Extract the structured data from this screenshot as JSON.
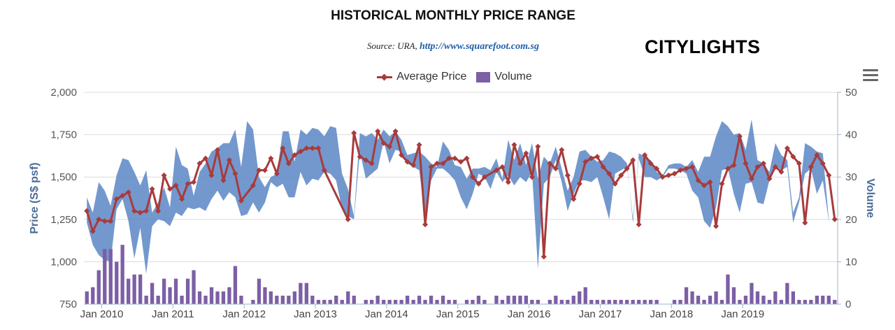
{
  "title": "HISTORICAL MONTHLY PRICE RANGE",
  "source_prefix": "Source: URA,",
  "source_link": "http://www.squarefoot.com.sg",
  "brand": "CITYLIGHTS",
  "menu_icon": "hamburger-menu-icon",
  "colors": {
    "price_line": "#a83b3b",
    "range_band": "#5b86c5",
    "volume_bar": "#7c5fa5",
    "axis_title": "#4a6b97"
  },
  "chart_data": {
    "type": "line",
    "legend": [
      "Average Price",
      "Volume"
    ],
    "legend_position": "top-center",
    "grid": true,
    "y_left": {
      "label": "Price (S$ psf)",
      "range": [
        750,
        2000
      ],
      "ticks": [
        "750",
        "1,000",
        "1,250",
        "1,500",
        "1,750",
        "2,000"
      ]
    },
    "y_right": {
      "label": "Volume",
      "range": [
        0,
        50
      ],
      "ticks": [
        "0",
        "10",
        "20",
        "30",
        "40",
        "50"
      ]
    },
    "x_ticks": [
      "Jan 2010",
      "Jan 2011",
      "Jan 2012",
      "Jan 2013",
      "Jan 2014",
      "Jan 2015",
      "Jan 2016",
      "Jan 2017",
      "Jan 2018",
      "Jan 2019"
    ],
    "x_start": "2009-10",
    "price_range": [
      [
        1380,
        1230
      ],
      [
        1290,
        1100
      ],
      [
        1470,
        1040
      ],
      [
        1420,
        1010
      ],
      [
        1330,
        1000
      ],
      [
        1510,
        1310
      ],
      [
        1610,
        1370
      ],
      [
        1600,
        1240
      ],
      [
        1530,
        1020
      ],
      [
        1450,
        1200
      ],
      [
        1540,
        930
      ],
      [
        1290,
        1210
      ],
      [
        1350,
        1250
      ],
      [
        1440,
        1240
      ],
      [
        1320,
        1210
      ],
      [
        1680,
        1290
      ],
      [
        1570,
        1270
      ],
      [
        1550,
        1320
      ],
      [
        1390,
        1310
      ],
      [
        1530,
        1320
      ],
      [
        1580,
        1300
      ],
      [
        1650,
        1370
      ],
      [
        1670,
        1420
      ],
      [
        1700,
        1360
      ],
      [
        1700,
        1410
      ],
      [
        1780,
        1380
      ],
      [
        1560,
        1270
      ],
      [
        1830,
        1280
      ],
      [
        1780,
        1350
      ],
      [
        1500,
        1290
      ],
      [
        1440,
        1350
      ],
      [
        1500,
        1470
      ],
      [
        1520,
        1440
      ],
      [
        1770,
        1460
      ],
      [
        1770,
        1380
      ],
      [
        1590,
        1380
      ],
      [
        1780,
        1530
      ],
      [
        1750,
        1450
      ],
      [
        1790,
        1490
      ],
      [
        1780,
        1480
      ],
      [
        1740,
        1530
      ],
      [
        1800,
        1520
      ],
      [
        1790,
        1480
      ],
      [
        1520,
        1310
      ],
      [
        1430,
        1270
      ],
      [
        1270,
        1250
      ],
      [
        1760,
        1650
      ],
      [
        1740,
        1490
      ],
      [
        1760,
        1520
      ],
      [
        1720,
        1550
      ],
      [
        1780,
        1710
      ],
      [
        1740,
        1580
      ],
      [
        1770,
        1660
      ],
      [
        1720,
        1650
      ],
      [
        1630,
        1580
      ],
      [
        1640,
        1560
      ],
      [
        1650,
        1540
      ],
      [
        1620,
        1260
      ],
      [
        1580,
        1480
      ],
      [
        1560,
        1550
      ],
      [
        1710,
        1550
      ],
      [
        1660,
        1520
      ],
      [
        1570,
        1480
      ],
      [
        1560,
        1380
      ],
      [
        1490,
        1310
      ],
      [
        1550,
        1400
      ],
      [
        1550,
        1520
      ],
      [
        1560,
        1500
      ],
      [
        1540,
        1430
      ],
      [
        1610,
        1530
      ],
      [
        1490,
        1470
      ],
      [
        1720,
        1510
      ],
      [
        1600,
        1450
      ],
      [
        1700,
        1500
      ],
      [
        1570,
        1470
      ],
      [
        1700,
        1530
      ],
      [
        1490,
        960
      ],
      [
        1620,
        1460
      ],
      [
        1580,
        1500
      ],
      [
        1680,
        1600
      ],
      [
        1550,
        1470
      ],
      [
        1420,
        1300
      ],
      [
        1500,
        1400
      ],
      [
        1650,
        1480
      ],
      [
        1660,
        1480
      ],
      [
        1620,
        1470
      ],
      [
        1590,
        1500
      ],
      [
        1600,
        1380
      ],
      [
        1650,
        1250
      ],
      [
        1640,
        1520
      ],
      [
        1620,
        1540
      ],
      [
        1580,
        1560
      ],
      [
        1230,
        1260
      ],
      [
        1640,
        1610
      ],
      [
        1620,
        1500
      ],
      [
        1600,
        1500
      ],
      [
        1530,
        1480
      ],
      [
        1510,
        1500
      ],
      [
        1570,
        1550
      ],
      [
        1580,
        1550
      ],
      [
        1580,
        1540
      ],
      [
        1560,
        1520
      ],
      [
        1600,
        1420
      ],
      [
        1530,
        1380
      ],
      [
        1620,
        1240
      ],
      [
        1620,
        1200
      ],
      [
        1740,
        1320
      ],
      [
        1830,
        1540
      ],
      [
        1800,
        1550
      ],
      [
        1750,
        1400
      ],
      [
        1760,
        1290
      ],
      [
        1660,
        1460
      ],
      [
        1840,
        1470
      ],
      [
        1600,
        1350
      ],
      [
        1580,
        1340
      ],
      [
        1530,
        1480
      ],
      [
        1700,
        1570
      ],
      [
        1630,
        1540
      ],
      [
        1600,
        1560
      ],
      [
        1290,
        1230
      ],
      [
        1380,
        1350
      ],
      [
        1700,
        1520
      ],
      [
        1680,
        1550
      ],
      [
        1650,
        1400
      ],
      [
        1640,
        1480
      ],
      [
        1250,
        1240
      ]
    ],
    "average_price": [
      1300,
      1180,
      1250,
      1240,
      1240,
      1370,
      1390,
      1410,
      1300,
      1290,
      1300,
      1430,
      1300,
      1510,
      1430,
      1450,
      1370,
      1460,
      1470,
      1580,
      1610,
      1510,
      1660,
      1480,
      1600,
      1520,
      1360,
      null,
      1450,
      1540,
      1540,
      1610,
      1520,
      1670,
      1580,
      1630,
      1650,
      1670,
      1670,
      1670,
      1540,
      null,
      null,
      null,
      1250,
      1760,
      1620,
      1600,
      1580,
      1770,
      1700,
      1680,
      1770,
      1630,
      1590,
      1570,
      1690,
      1220,
      1560,
      1580,
      1580,
      1610,
      1610,
      1590,
      1610,
      1500,
      1460,
      1500,
      null,
      1540,
      1560,
      1470,
      1690,
      1580,
      1640,
      1500,
      1680,
      1030,
      1580,
      1550,
      1660,
      1510,
      1370,
      1460,
      1590,
      1610,
      1620,
      1560,
      1520,
      1460,
      1510,
      1550,
      1600,
      1220,
      1630,
      1580,
      1550,
      1500,
      1510,
      1520,
      1540,
      1550,
      1560,
      1480,
      1450,
      1470,
      1210,
      1460,
      1550,
      1570,
      1740,
      1580,
      1490,
      1560,
      1580,
      1490,
      1560,
      1530,
      1670,
      1620,
      1580,
      1230,
      1560,
      1630,
      1580,
      1510,
      1250
    ],
    "volume": [
      3,
      4,
      8,
      13,
      13,
      10,
      14,
      6,
      7,
      7,
      2,
      5,
      2,
      6,
      4,
      6,
      2,
      6,
      8,
      3,
      2,
      4,
      3,
      3,
      4,
      9,
      2,
      0,
      1,
      6,
      4,
      3,
      2,
      2,
      2,
      3,
      5,
      5,
      2,
      1,
      1,
      1,
      2,
      1,
      3,
      2,
      0,
      1,
      1,
      2,
      1,
      1,
      1,
      1,
      2,
      1,
      2,
      1,
      2,
      1,
      2,
      1,
      1,
      0,
      1,
      1,
      2,
      1,
      0,
      2,
      1,
      2,
      2,
      2,
      2,
      1,
      1,
      0,
      1,
      2,
      1,
      1,
      2,
      3,
      4,
      1,
      1,
      1,
      1,
      1,
      1,
      1,
      1,
      1,
      1,
      1,
      1,
      0,
      0,
      1,
      1,
      4,
      3,
      2,
      1,
      2,
      3,
      1,
      7,
      4,
      1,
      2,
      5,
      3,
      2,
      1,
      3,
      1,
      5,
      3,
      1,
      1,
      1,
      2,
      2,
      2,
      1
    ]
  }
}
